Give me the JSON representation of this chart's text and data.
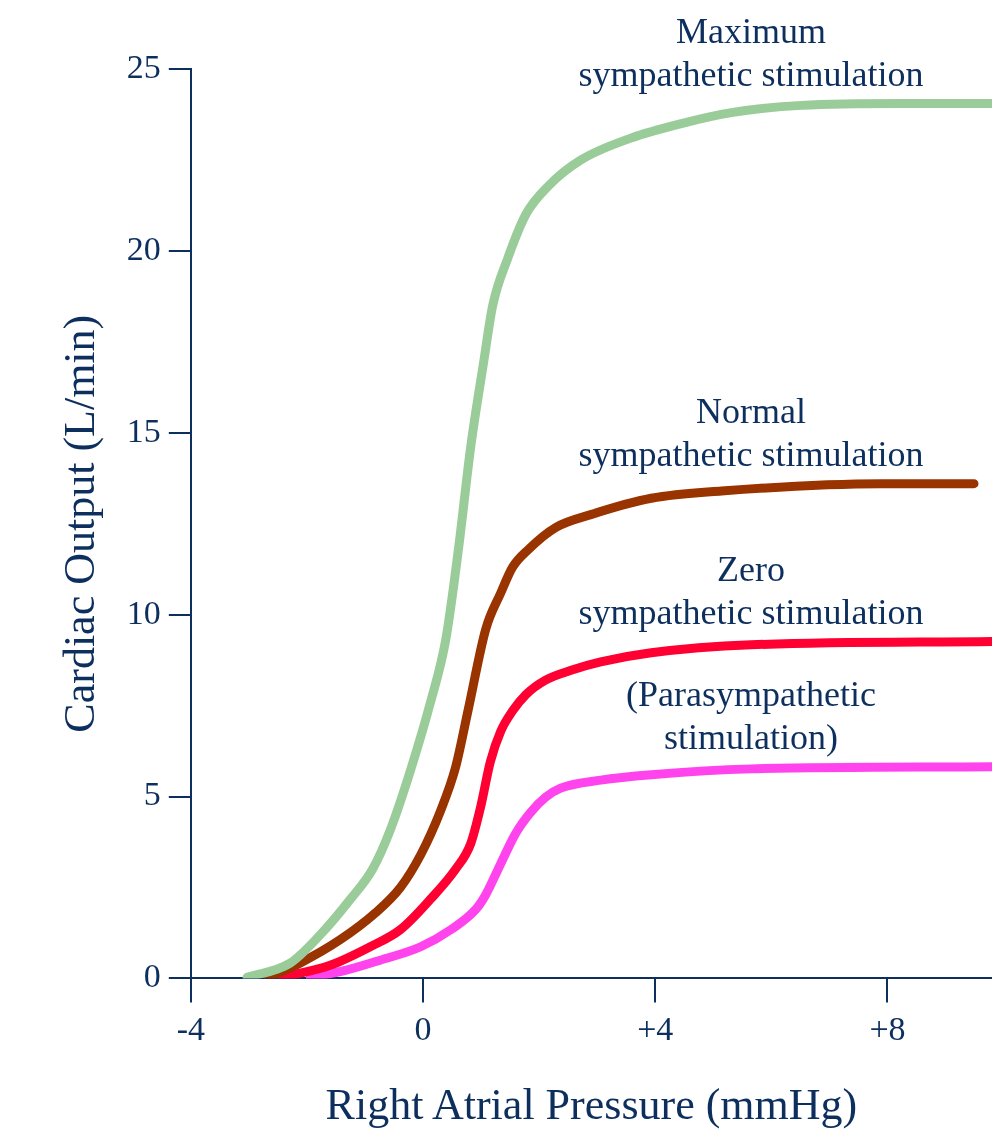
{
  "chart_data": {
    "type": "line",
    "xlabel": "Right Atrial Pressure (mmHg)",
    "ylabel": "Cardiac Output (L/min)",
    "xlim": [
      -4,
      9.8
    ],
    "xticks": [
      -4,
      0,
      {
        "value": 4,
        "label": "+4"
      },
      {
        "value": 8,
        "label": "+8"
      }
    ],
    "ylim": [
      0,
      25
    ],
    "yticks": [
      0,
      5,
      10,
      15,
      20,
      25
    ],
    "grid": false,
    "legend": false,
    "marker": "none",
    "line_style": "solid",
    "series": [
      {
        "name": "Maximum sympathetic stimulation",
        "color": "#99cc99",
        "x": [
          -3.03,
          -2.29,
          -1.77,
          -1.25,
          -0.87,
          -0.56,
          -0.22,
          0.13,
          0.39,
          0.61,
          0.82,
          1.04,
          1.2,
          1.46,
          1.77,
          2.17,
          2.72,
          3.58,
          4.45,
          5.31,
          6.52,
          8.25,
          9.8
        ],
        "values": [
          0.03,
          0.42,
          1.2,
          2.18,
          3.0,
          4.1,
          5.7,
          7.6,
          9.3,
          11.8,
          14.6,
          16.9,
          18.5,
          19.8,
          21.0,
          21.8,
          22.5,
          23.1,
          23.5,
          23.8,
          24.0,
          24.05,
          24.05
        ]
      },
      {
        "name": "Normal sympathetic stimulation",
        "color": "#993300",
        "x": [
          -2.67,
          -2.12,
          -1.43,
          -0.82,
          -0.39,
          -0.04,
          0.3,
          0.56,
          0.78,
          1.08,
          1.34,
          1.54,
          1.82,
          2.29,
          2.89,
          3.93,
          5.14,
          7.9,
          9.49
        ],
        "values": [
          0.03,
          0.42,
          1.06,
          1.8,
          2.5,
          3.4,
          4.6,
          5.8,
          7.4,
          9.6,
          10.6,
          11.3,
          11.8,
          12.4,
          12.75,
          13.2,
          13.4,
          13.6,
          13.6
        ]
      },
      {
        "name": "Zero sympathetic stimulation",
        "color": "#ff0033",
        "x": [
          -2.43,
          -1.6,
          -0.91,
          -0.39,
          0.13,
          0.56,
          0.82,
          0.99,
          1.16,
          1.34,
          1.54,
          1.77,
          2.11,
          2.55,
          3.06,
          3.93,
          5.65,
          9.8
        ],
        "values": [
          0.03,
          0.36,
          0.87,
          1.34,
          2.18,
          3.0,
          3.7,
          4.7,
          5.96,
          6.8,
          7.35,
          7.8,
          8.2,
          8.47,
          8.7,
          8.95,
          9.17,
          9.26
        ]
      },
      {
        "name": "(Parasympathetic stimulation)",
        "color": "#ff44ee",
        "x": [
          -1.94,
          -1.34,
          -0.74,
          -0.04,
          0.48,
          0.91,
          1.08,
          1.34,
          1.6,
          1.85,
          2.11,
          2.37,
          3.06,
          3.93,
          5.65,
          9.8
        ],
        "values": [
          0.03,
          0.22,
          0.5,
          0.87,
          1.34,
          1.9,
          2.3,
          3.16,
          4.0,
          4.56,
          4.98,
          5.23,
          5.45,
          5.6,
          5.76,
          5.82
        ]
      }
    ]
  }
}
